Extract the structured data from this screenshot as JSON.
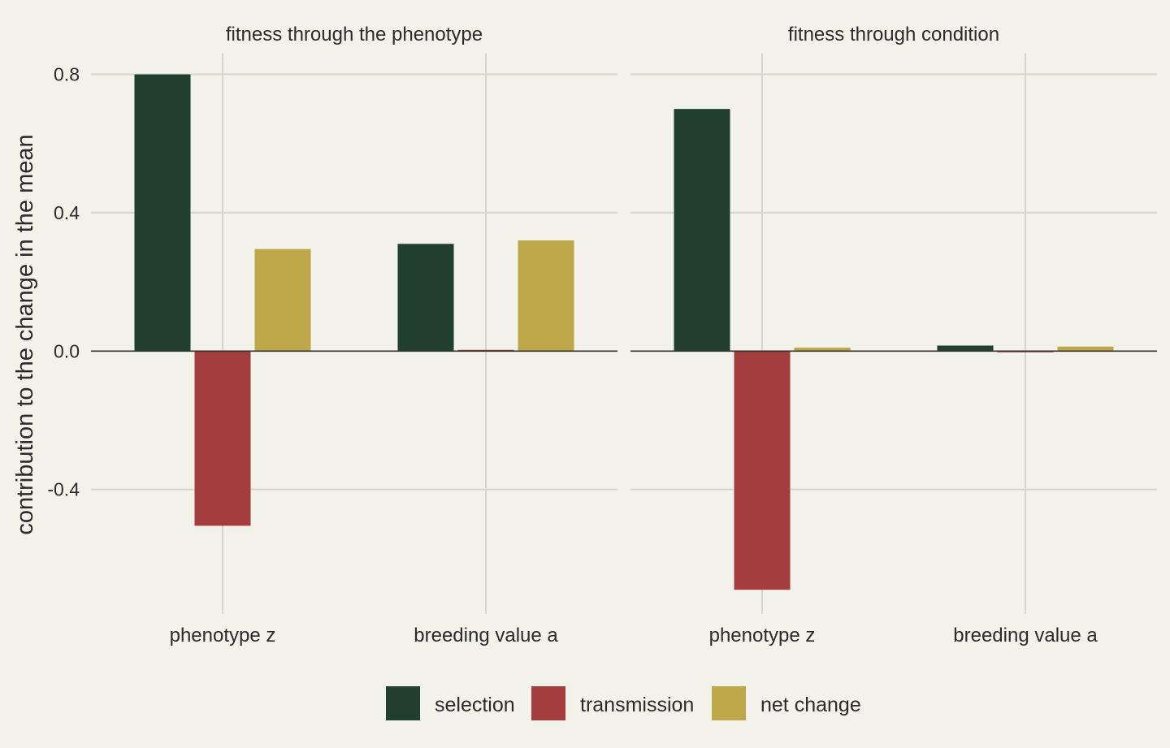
{
  "chart_data": {
    "type": "bar",
    "ylabel": "contribution to the change in the mean",
    "ylim": [
      -0.76,
      0.86
    ],
    "yticks": [
      -0.4,
      0.0,
      0.4,
      0.8
    ],
    "ytick_labels": [
      "-0.4",
      "0.0",
      "0.4",
      "0.8"
    ],
    "categories": [
      "phenotype z",
      "breeding value a"
    ],
    "legend": {
      "position": "bottom",
      "entries": [
        {
          "name": "selection",
          "color": "#20402c"
        },
        {
          "name": "transmission",
          "color": "#a43e3e"
        },
        {
          "name": "net change",
          "color": "#bea748"
        }
      ]
    },
    "panels": [
      {
        "title": "fitness through the phenotype",
        "series": [
          {
            "name": "selection",
            "values": [
              0.8,
              0.31
            ]
          },
          {
            "name": "transmission",
            "values": [
              -0.505,
              0.003
            ]
          },
          {
            "name": "net change",
            "values": [
              0.295,
              0.32
            ]
          }
        ]
      },
      {
        "title": "fitness through condition",
        "series": [
          {
            "name": "selection",
            "values": [
              0.7,
              0.016
            ]
          },
          {
            "name": "transmission",
            "values": [
              -0.69,
              -0.003
            ]
          },
          {
            "name": "net change",
            "values": [
              0.01,
              0.013
            ]
          }
        ]
      }
    ],
    "grid": true
  }
}
